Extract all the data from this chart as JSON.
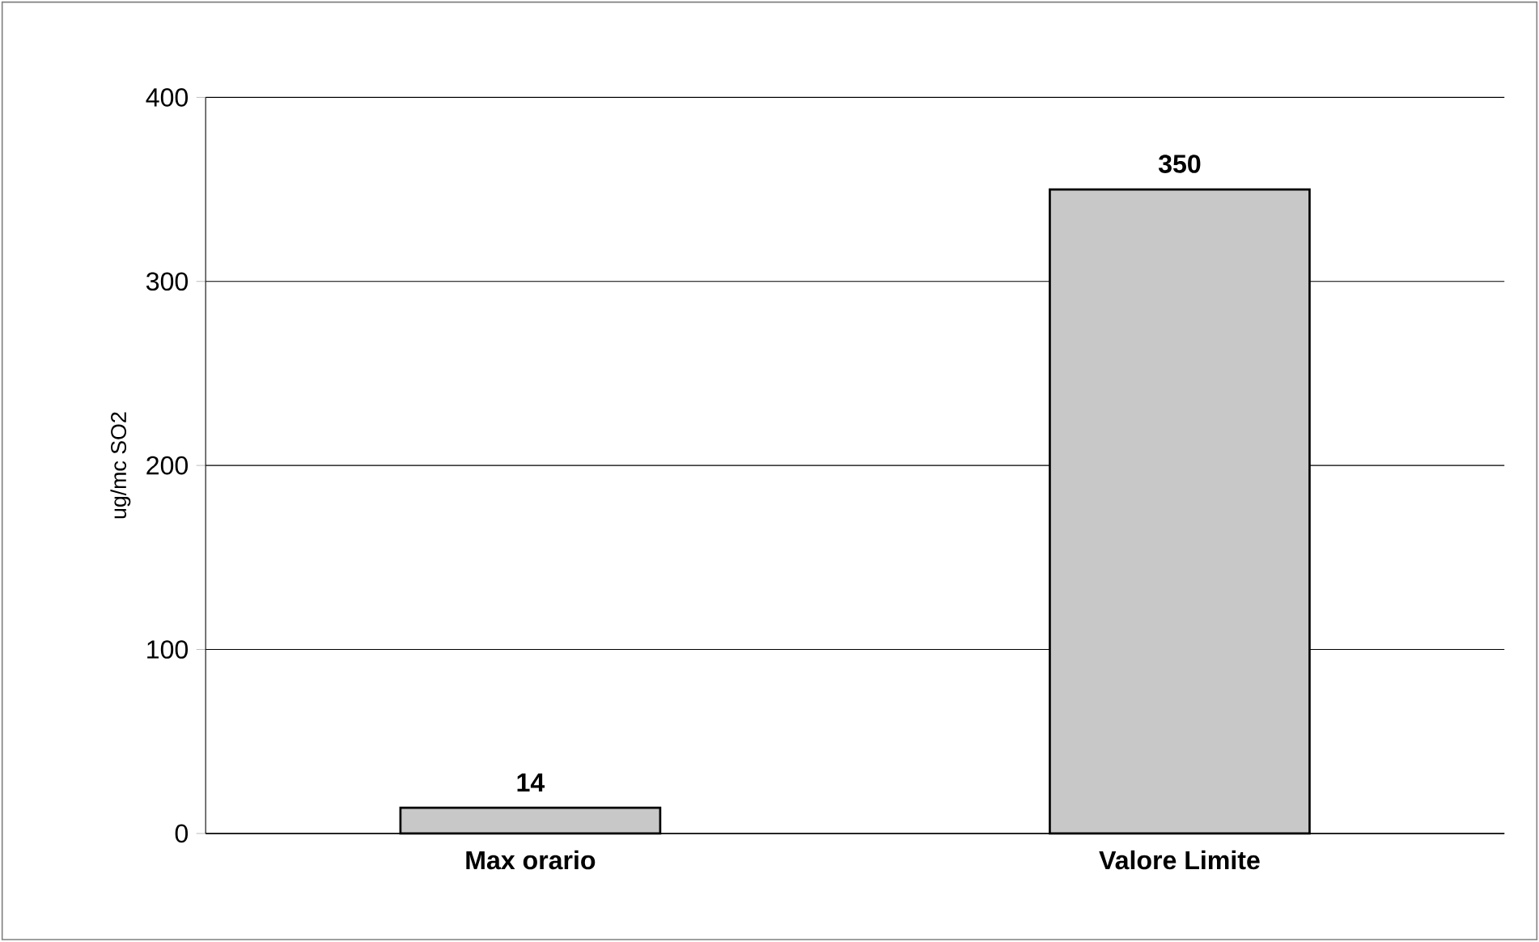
{
  "chart_data": {
    "type": "bar",
    "ylabel": "ug/mc SO2",
    "categories": [
      "Max orario",
      "Valore Limite"
    ],
    "values": [
      14,
      350
    ],
    "color": "#c8c8c8",
    "ylim": [
      0,
      400
    ],
    "yticks": [
      0,
      100,
      200,
      300,
      400
    ],
    "grid": "y",
    "data_labels": true
  }
}
